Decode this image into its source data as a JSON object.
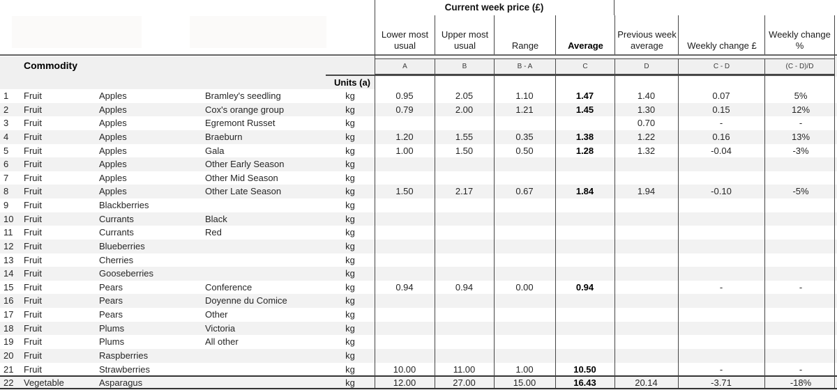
{
  "table": {
    "title": "Current week price (£)",
    "commodity_header": "Commodity",
    "units_header": "Units (a)",
    "column_headers": [
      "Lower most usual",
      "Upper most usual",
      "Range",
      "Average",
      "Previous week average",
      "Weekly change £",
      "Weekly change %"
    ],
    "formula_row": [
      "A",
      "B",
      "B - A",
      "C",
      "D",
      "C - D",
      "(C - D)/D"
    ],
    "rows": [
      {
        "num": "1",
        "category": "Fruit",
        "commodity": "Apples",
        "variety": "Bramley's seedling",
        "units": "kg",
        "values": [
          "0.95",
          "2.05",
          "1.10",
          "1.47",
          "1.40",
          "0.07",
          "5%"
        ]
      },
      {
        "num": "2",
        "category": "Fruit",
        "commodity": "Apples",
        "variety": "Cox's orange group",
        "units": "kg",
        "values": [
          "0.79",
          "2.00",
          "1.21",
          "1.45",
          "1.30",
          "0.15",
          "12%"
        ]
      },
      {
        "num": "3",
        "category": "Fruit",
        "commodity": "Apples",
        "variety": "Egremont Russet",
        "units": "kg",
        "values": [
          "",
          "",
          "",
          "",
          "0.70",
          "-",
          "-"
        ]
      },
      {
        "num": "4",
        "category": "Fruit",
        "commodity": "Apples",
        "variety": "Braeburn",
        "units": "kg",
        "values": [
          "1.20",
          "1.55",
          "0.35",
          "1.38",
          "1.22",
          "0.16",
          "13%"
        ]
      },
      {
        "num": "5",
        "category": "Fruit",
        "commodity": "Apples",
        "variety": "Gala",
        "units": "kg",
        "values": [
          "1.00",
          "1.50",
          "0.50",
          "1.28",
          "1.32",
          "-0.04",
          "-3%"
        ]
      },
      {
        "num": "6",
        "category": "Fruit",
        "commodity": "Apples",
        "variety": "Other Early Season",
        "units": "kg",
        "values": [
          "",
          "",
          "",
          "",
          "",
          "",
          ""
        ]
      },
      {
        "num": "7",
        "category": "Fruit",
        "commodity": "Apples",
        "variety": "Other Mid Season",
        "units": "kg",
        "values": [
          "",
          "",
          "",
          "",
          "",
          "",
          ""
        ]
      },
      {
        "num": "8",
        "category": "Fruit",
        "commodity": "Apples",
        "variety": "Other Late Season",
        "units": "kg",
        "values": [
          "1.50",
          "2.17",
          "0.67",
          "1.84",
          "1.94",
          "-0.10",
          "-5%"
        ]
      },
      {
        "num": "9",
        "category": "Fruit",
        "commodity": "Blackberries",
        "variety": "",
        "units": "kg",
        "values": [
          "",
          "",
          "",
          "",
          "",
          "",
          ""
        ]
      },
      {
        "num": "10",
        "category": "Fruit",
        "commodity": "Currants",
        "variety": "Black",
        "units": "kg",
        "values": [
          "",
          "",
          "",
          "",
          "",
          "",
          ""
        ]
      },
      {
        "num": "11",
        "category": "Fruit",
        "commodity": "Currants",
        "variety": "Red",
        "units": "kg",
        "values": [
          "",
          "",
          "",
          "",
          "",
          "",
          ""
        ]
      },
      {
        "num": "12",
        "category": "Fruit",
        "commodity": "Blueberries",
        "variety": "",
        "units": "kg",
        "values": [
          "",
          "",
          "",
          "",
          "",
          "",
          ""
        ]
      },
      {
        "num": "13",
        "category": "Fruit",
        "commodity": "Cherries",
        "variety": "",
        "units": "kg",
        "values": [
          "",
          "",
          "",
          "",
          "",
          "",
          ""
        ]
      },
      {
        "num": "14",
        "category": "Fruit",
        "commodity": "Gooseberries",
        "variety": "",
        "units": "kg",
        "values": [
          "",
          "",
          "",
          "",
          "",
          "",
          ""
        ]
      },
      {
        "num": "15",
        "category": "Fruit",
        "commodity": "Pears",
        "variety": "Conference",
        "units": "kg",
        "values": [
          "0.94",
          "0.94",
          "0.00",
          "0.94",
          "",
          "-",
          "-"
        ]
      },
      {
        "num": "16",
        "category": "Fruit",
        "commodity": "Pears",
        "variety": "Doyenne du Comice",
        "units": "kg",
        "values": [
          "",
          "",
          "",
          "",
          "",
          "",
          ""
        ]
      },
      {
        "num": "17",
        "category": "Fruit",
        "commodity": "Pears",
        "variety": "Other",
        "units": "kg",
        "values": [
          "",
          "",
          "",
          "",
          "",
          "",
          ""
        ]
      },
      {
        "num": "18",
        "category": "Fruit",
        "commodity": "Plums",
        "variety": "Victoria",
        "units": "kg",
        "values": [
          "",
          "",
          "",
          "",
          "",
          "",
          ""
        ]
      },
      {
        "num": "19",
        "category": "Fruit",
        "commodity": "Plums",
        "variety": "All other",
        "units": "kg",
        "values": [
          "",
          "",
          "",
          "",
          "",
          "",
          ""
        ]
      },
      {
        "num": "20",
        "category": "Fruit",
        "commodity": "Raspberries",
        "variety": "",
        "units": "kg",
        "values": [
          "",
          "",
          "",
          "",
          "",
          "",
          ""
        ]
      },
      {
        "num": "21",
        "category": "Fruit",
        "commodity": "Strawberries",
        "variety": "",
        "units": "kg",
        "values": [
          "10.00",
          "11.00",
          "1.00",
          "10.50",
          "",
          "-",
          "-"
        ]
      },
      {
        "num": "22",
        "category": "Vegetable",
        "commodity": "Asparagus",
        "variety": "",
        "units": "kg",
        "values": [
          "12.00",
          "27.00",
          "15.00",
          "16.43",
          "20.14",
          "-3.71",
          "-18%"
        ]
      }
    ]
  }
}
